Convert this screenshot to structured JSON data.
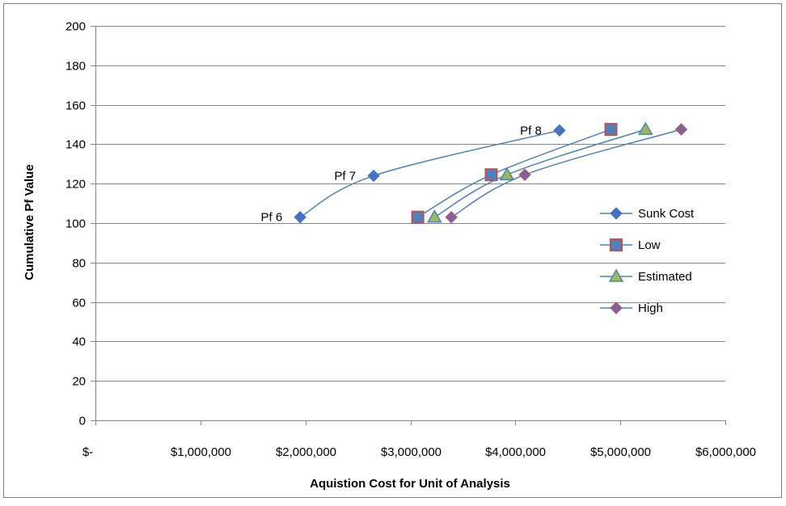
{
  "chart_data": {
    "type": "scatter",
    "title": "",
    "xlabel": "Aquistion Cost for Unit of Analysis",
    "ylabel": "Cumulative Pf Value",
    "xlim": [
      0,
      6000000
    ],
    "ylim": [
      0,
      200
    ],
    "x_ticks": [
      0,
      1000000,
      2000000,
      3000000,
      4000000,
      5000000,
      6000000
    ],
    "x_tick_labels": [
      "$-",
      "$1,000,000",
      "$2,000,000",
      "$3,000,000",
      "$4,000,000",
      "$5,000,000",
      "$6,000,000"
    ],
    "y_ticks": [
      0,
      20,
      40,
      60,
      80,
      100,
      120,
      140,
      160,
      180,
      200
    ],
    "y_tick_labels": [
      "0",
      "20",
      "40",
      "60",
      "80",
      "100",
      "120",
      "140",
      "160",
      "180",
      "200"
    ],
    "grid": "horizontal",
    "legend_position": "right",
    "series": [
      {
        "name": "Sunk Cost",
        "marker": "diamond",
        "marker_color": "#4472C4",
        "line_color": "#4F81BD",
        "points": [
          {
            "x": 1950000,
            "y": 103
          },
          {
            "x": 2650000,
            "y": 124
          },
          {
            "x": 4420000,
            "y": 147
          }
        ]
      },
      {
        "name": "Low",
        "marker": "square",
        "marker_color": "#4F81BD",
        "marker_edge": "#C0504D",
        "line_color": "#4F81BD",
        "points": [
          {
            "x": 3070000,
            "y": 103
          },
          {
            "x": 3770000,
            "y": 124.5
          },
          {
            "x": 4910000,
            "y": 147.5
          }
        ]
      },
      {
        "name": "Estimated",
        "marker": "triangle",
        "marker_color": "#9BBB59",
        "marker_edge": "#4F81BD",
        "line_color": "#4F81BD",
        "points": [
          {
            "x": 3230000,
            "y": 103
          },
          {
            "x": 3920000,
            "y": 124.5
          },
          {
            "x": 5240000,
            "y": 147.5
          }
        ]
      },
      {
        "name": "High",
        "marker": "diamond",
        "marker_color": "#8064A2",
        "marker_edge": "#C0504D",
        "line_color": "#4F81BD",
        "points": [
          {
            "x": 3390000,
            "y": 103
          },
          {
            "x": 4090000,
            "y": 124.5
          },
          {
            "x": 5580000,
            "y": 147.5
          }
        ]
      }
    ],
    "annotations": [
      {
        "text": "Pf 6",
        "x": 1950000,
        "y": 103
      },
      {
        "text": "Pf 7",
        "x": 2650000,
        "y": 124
      },
      {
        "text": "Pf 8",
        "x": 4420000,
        "y": 147
      }
    ]
  }
}
